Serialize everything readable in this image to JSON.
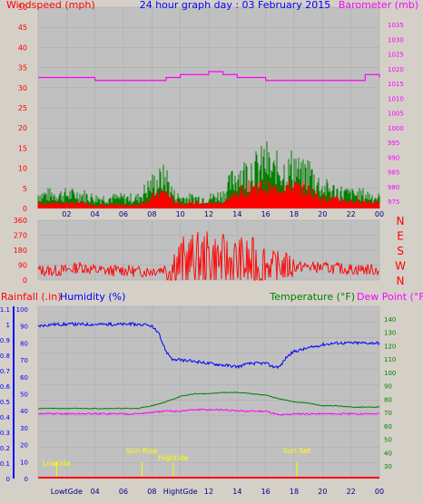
{
  "colors": {
    "background": "#d4d0c8",
    "plot_bg": "#c0c0c0",
    "grid": "#a8a8a8",
    "windspeed": "#ff0000",
    "gust": "#008000",
    "barometer": "#ff00ff",
    "direction": "#ff0000",
    "rainfall": "#ff0000",
    "humidity": "#0000ff",
    "temperature": "#008000",
    "dewpoint": "#ff00ff",
    "sun_marker": "#ffff00"
  },
  "chart_data": [
    {
      "type": "line",
      "title": "24 hour graph day : 03 February 2015",
      "left_axis": {
        "label": "Windspeed (mph)",
        "ticks": [
          "0",
          "5",
          "10",
          "15",
          "20",
          "25",
          "30",
          "35",
          "40",
          "45",
          "50"
        ],
        "range": [
          0,
          50
        ]
      },
      "right_axis": {
        "label": "Barometer (mb)",
        "ticks": [
          "975",
          "980",
          "985",
          "990",
          "995",
          "1000",
          "1005",
          "1010",
          "1015",
          "1020",
          "1025",
          "1030",
          "1035"
        ],
        "range": [
          975,
          1035
        ]
      },
      "x_ticks": [
        "02",
        "04",
        "06",
        "08",
        "10",
        "12",
        "14",
        "16",
        "18",
        "20",
        "22",
        "00"
      ],
      "x_range": [
        0,
        24
      ],
      "series": [
        {
          "key": "windspeed",
          "style": "bars",
          "x": [
            0,
            1,
            2,
            3,
            4,
            5,
            6,
            7,
            7.5,
            8,
            8.5,
            9,
            9.5,
            10,
            11,
            12,
            13,
            13.5,
            14,
            14.5,
            15,
            15.5,
            16,
            16.5,
            17,
            17.5,
            18,
            18.5,
            19,
            19.5,
            20,
            21,
            22,
            23,
            24
          ],
          "values": [
            1.5,
            1.5,
            1.5,
            1.5,
            1,
            1,
            1,
            1,
            2,
            3,
            4,
            4.5,
            2,
            1.5,
            1.5,
            1.5,
            1.5,
            3,
            4,
            5,
            6,
            6,
            6,
            5,
            6,
            6,
            6,
            5.5,
            5,
            4,
            3,
            2.5,
            2,
            2,
            1.5
          ]
        },
        {
          "key": "gust",
          "style": "bars",
          "x": [
            0,
            1,
            2,
            3,
            4,
            5,
            6,
            7,
            7.5,
            8,
            8.5,
            9,
            9.5,
            10,
            11,
            12,
            13,
            13.5,
            14,
            14.5,
            15,
            15.5,
            16,
            16.5,
            17,
            17.5,
            18,
            18.5,
            19,
            19.5,
            20,
            21,
            22,
            23,
            24
          ],
          "values": [
            4,
            4,
            4,
            4,
            3,
            3,
            3,
            3,
            5,
            7,
            8,
            9,
            4,
            3,
            3,
            3,
            4,
            7,
            10,
            10,
            12,
            11,
            14,
            10,
            12,
            10,
            13,
            9,
            11,
            8,
            6,
            5,
            4,
            4,
            3
          ]
        },
        {
          "key": "barometer",
          "style": "step",
          "x": [
            0,
            2,
            4,
            6,
            7,
            8,
            9,
            10,
            11,
            12,
            13,
            14,
            15,
            16,
            17,
            18,
            19,
            20,
            21,
            22,
            23,
            24
          ],
          "values": [
            1017,
            1017,
            1016,
            1016,
            1016,
            1016,
            1017,
            1018,
            1018,
            1019,
            1018,
            1017,
            1017,
            1016,
            1016,
            1016,
            1016,
            1016,
            1016,
            1016,
            1018,
            1017
          ]
        }
      ]
    },
    {
      "type": "line",
      "left_axis": {
        "ticks": [
          "0",
          "90",
          "180",
          "270",
          "360"
        ],
        "range": [
          0,
          360
        ]
      },
      "right_axis": {
        "ticks": [
          "N",
          "W",
          "S",
          "E",
          "N"
        ]
      },
      "x_range": [
        0,
        24
      ],
      "series": [
        {
          "key": "direction",
          "style": "noisy",
          "x": [
            0,
            1,
            2,
            3,
            4,
            5,
            6,
            7,
            8,
            9,
            10,
            11,
            12,
            13,
            14,
            15,
            16,
            17,
            18,
            19,
            20,
            21,
            22,
            23,
            24
          ],
          "values": [
            60,
            55,
            60,
            80,
            60,
            55,
            60,
            50,
            55,
            70,
            100,
            120,
            130,
            110,
            100,
            90,
            90,
            85,
            80,
            80,
            75,
            70,
            65,
            65,
            60
          ]
        }
      ]
    },
    {
      "type": "line",
      "left_axis": {
        "label": "Rainfall (.in)",
        "ticks": [
          "0",
          "0.1",
          "0.2",
          "0.3",
          "0.4",
          "0.5",
          "0.6",
          "0.7",
          "0.8",
          "0.9",
          "1",
          "1.1"
        ],
        "range": [
          0,
          1.1
        ]
      },
      "humidity_axis": {
        "label": "Humidity (%)",
        "ticks": [
          "0",
          "10",
          "20",
          "30",
          "40",
          "50",
          "60",
          "70",
          "80",
          "90",
          "100"
        ],
        "range": [
          0,
          100
        ]
      },
      "right_axis": {
        "label": "Temperature (°F)",
        "label2": "Dew Point (°F)",
        "ticks": [
          "30",
          "40",
          "50",
          "60",
          "70",
          "80",
          "90",
          "100",
          "110",
          "120",
          "130",
          "140"
        ],
        "range": [
          30,
          140
        ]
      },
      "x_ticks": [
        "LowtGde",
        "04",
        "06",
        "08",
        "HightGde",
        "12",
        "14",
        "16",
        "18",
        "20",
        "22",
        "00"
      ],
      "x_range": [
        0,
        24
      ],
      "annotations": [
        {
          "text": "Lowtide",
          "x": 1.3
        },
        {
          "text": "Sun Rise",
          "x": 7.3
        },
        {
          "text": "Hightide",
          "x": 9.5
        },
        {
          "text": "Sun Set",
          "x": 18.2
        }
      ],
      "series": [
        {
          "key": "rainfall",
          "x": [
            0,
            24
          ],
          "values": [
            0,
            0
          ]
        },
        {
          "key": "humidity",
          "x": [
            0,
            1,
            2,
            3,
            4,
            5,
            6,
            7,
            8,
            8.5,
            9,
            9.5,
            10,
            11,
            12,
            13,
            14,
            15,
            16,
            16.5,
            17,
            17.5,
            18,
            19,
            20,
            21,
            22,
            23,
            23.5,
            24
          ],
          "values": [
            90,
            91,
            91,
            91,
            91,
            91,
            91,
            91,
            90,
            85,
            75,
            70,
            70,
            69,
            68,
            67,
            66,
            68,
            68,
            66,
            66,
            72,
            75,
            77,
            79,
            80,
            80,
            80,
            80,
            80
          ]
        },
        {
          "key": "temperature",
          "x": [
            0,
            2,
            4,
            6,
            7,
            8,
            9,
            10,
            11,
            12,
            13,
            14,
            15,
            16,
            17,
            18,
            19,
            20,
            21,
            22,
            23,
            24
          ],
          "values": [
            73,
            73,
            73,
            73,
            73,
            75,
            78,
            82,
            84,
            84,
            85,
            85,
            84,
            83,
            80,
            78,
            77,
            75,
            75,
            74,
            74,
            74
          ]
        },
        {
          "key": "dewpoint",
          "x": [
            0,
            2,
            4,
            6,
            7,
            8,
            9,
            10,
            11,
            12,
            13,
            14,
            15,
            16,
            17,
            18,
            19,
            20,
            21,
            22,
            23,
            24
          ],
          "values": [
            69,
            69,
            69,
            69,
            69,
            70,
            71,
            71,
            72,
            72,
            72,
            71,
            71,
            71,
            68,
            69,
            69,
            69,
            69,
            69,
            69,
            69
          ]
        }
      ]
    }
  ]
}
